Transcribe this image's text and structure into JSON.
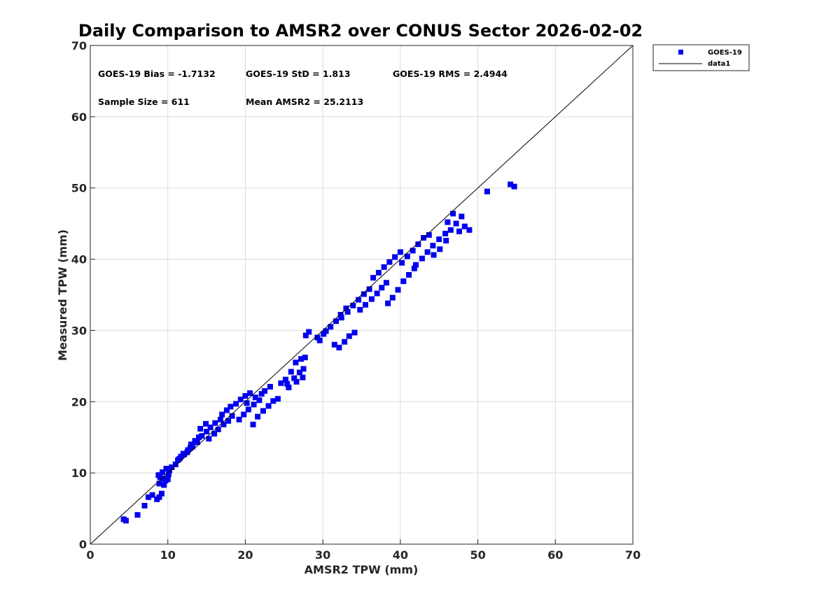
{
  "chart_data": {
    "type": "scatter",
    "title": "Daily Comparison to AMSR2 over CONUS Sector 2026-02-02",
    "xlabel": "AMSR2 TPW (mm)",
    "ylabel": "Measured TPW (mm)",
    "xlim": [
      0,
      70
    ],
    "ylim": [
      0,
      70
    ],
    "xticks": [
      "0",
      "10",
      "20",
      "30",
      "40",
      "50",
      "60",
      "70"
    ],
    "yticks": [
      "0",
      "10",
      "20",
      "30",
      "40",
      "50",
      "60",
      "70"
    ],
    "grid": true,
    "legend_position": "outside-top-right",
    "colors": {
      "marker": "#0000ee",
      "line": "#000000",
      "grid": "#dcdcdc",
      "axes": "#262626"
    },
    "annotations": [
      "GOES-19 Bias = -1.7132",
      "GOES-19 StD = 1.813",
      "GOES-19 RMS = 2.4944",
      "Sample Size = 611",
      "Mean AMSR2 = 25.2113"
    ],
    "series": [
      {
        "name": "GOES-19",
        "type": "scatter",
        "marker": "square",
        "x": [
          4.3,
          4.6,
          6.1,
          7.0,
          7.5,
          8.0,
          8.6,
          8.9,
          9.2,
          9.5,
          9.7,
          10.0,
          8.8,
          9.0,
          9.3,
          9.8,
          10.2,
          8.9,
          9.4,
          10.1,
          10.5,
          11.0,
          11.3,
          11.7,
          12.1,
          12.5,
          12.9,
          11.5,
          12.0,
          12.6,
          13.0,
          13.5,
          14.0,
          13.2,
          13.8,
          14.4,
          15.0,
          14.2,
          14.9,
          15.5,
          16.1,
          16.8,
          15.3,
          16.0,
          16.5,
          17.2,
          17.8,
          18.3,
          17.0,
          17.6,
          18.1,
          18.8,
          19.4,
          20.0,
          20.6,
          19.2,
          19.8,
          20.4,
          21.1,
          21.8,
          22.5,
          21.0,
          21.6,
          22.3,
          23.0,
          23.6,
          24.2,
          20.2,
          21.3,
          22.1,
          23.2,
          24.6,
          25.2,
          25.9,
          26.5,
          27.2,
          27.7,
          25.4,
          26.3,
          27.0,
          27.5,
          25.6,
          26.6,
          27.4,
          27.8,
          28.2,
          29.3,
          30.1,
          29.6,
          30.4,
          31.0,
          31.7,
          32.3,
          33.0,
          31.5,
          32.1,
          32.8,
          33.4,
          34.1,
          32.4,
          33.2,
          33.9,
          34.6,
          35.3,
          36.0,
          34.8,
          35.5,
          36.3,
          37.0,
          37.6,
          38.2,
          36.5,
          37.2,
          37.9,
          38.6,
          39.3,
          40.0,
          38.4,
          39.0,
          39.7,
          40.4,
          41.1,
          41.8,
          40.2,
          40.9,
          41.6,
          42.3,
          43.0,
          43.7,
          42.0,
          42.8,
          43.5,
          44.2,
          45.0,
          45.8,
          44.3,
          45.1,
          45.9,
          46.5,
          47.2,
          47.9,
          46.1,
          46.8,
          47.6,
          48.3,
          48.9,
          51.2,
          54.2,
          54.7
        ],
        "y": [
          3.5,
          3.3,
          4.1,
          5.4,
          6.6,
          6.9,
          6.3,
          6.6,
          7.1,
          8.3,
          8.9,
          9.1,
          9.7,
          9.4,
          10.1,
          10.6,
          10.3,
          8.5,
          9.2,
          9.8,
          10.8,
          11.2,
          11.8,
          12.3,
          12.6,
          12.9,
          13.5,
          12.0,
          12.7,
          13.2,
          14.0,
          14.5,
          15.0,
          13.7,
          14.3,
          15.2,
          15.8,
          16.2,
          16.9,
          16.4,
          17.0,
          17.5,
          14.8,
          15.5,
          16.1,
          16.8,
          17.3,
          18.0,
          18.2,
          18.8,
          19.3,
          19.7,
          20.3,
          20.8,
          21.2,
          17.5,
          18.2,
          18.9,
          19.6,
          20.2,
          21.5,
          16.8,
          17.9,
          18.7,
          19.4,
          20.1,
          20.4,
          19.8,
          20.6,
          21.1,
          22.1,
          22.6,
          23.1,
          24.2,
          25.5,
          26.0,
          26.2,
          22.5,
          23.3,
          24.1,
          24.6,
          22.0,
          22.8,
          23.4,
          29.3,
          29.8,
          29.0,
          29.5,
          28.6,
          29.9,
          30.5,
          31.3,
          32.2,
          33.1,
          28.0,
          27.6,
          28.4,
          29.2,
          29.7,
          31.8,
          32.6,
          33.5,
          34.3,
          35.1,
          35.8,
          32.9,
          33.6,
          34.4,
          35.2,
          36.0,
          36.7,
          37.4,
          38.1,
          38.9,
          39.6,
          40.3,
          41.0,
          33.8,
          34.6,
          35.7,
          36.9,
          37.8,
          38.7,
          39.5,
          40.4,
          41.2,
          42.1,
          43.0,
          43.4,
          39.2,
          40.1,
          41.0,
          41.9,
          42.8,
          43.6,
          40.6,
          41.4,
          42.6,
          44.1,
          45.0,
          46.0,
          45.2,
          46.4,
          43.9,
          44.6,
          44.1,
          49.5,
          50.5,
          50.2
        ]
      },
      {
        "name": "data1",
        "type": "line",
        "x": [
          0,
          70
        ],
        "y": [
          0,
          70
        ]
      }
    ]
  }
}
